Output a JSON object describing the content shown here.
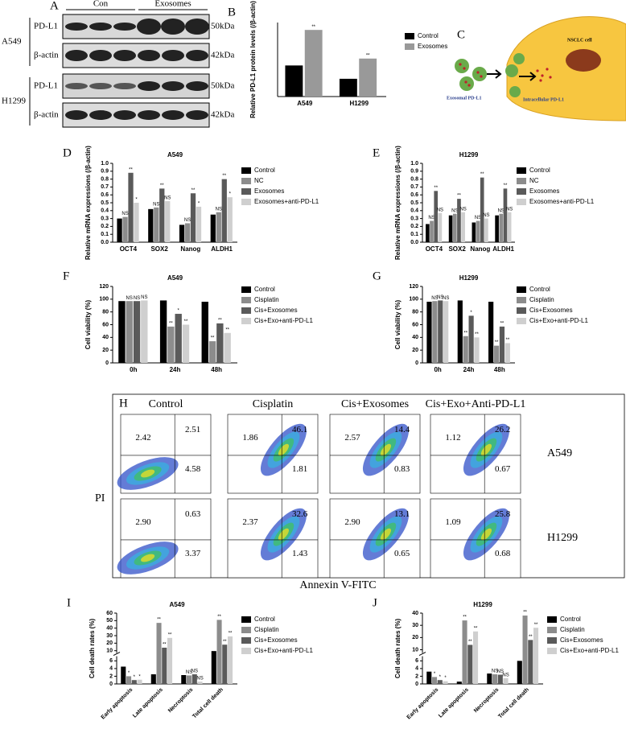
{
  "blot": {
    "letter": "A",
    "groups": [
      "Con",
      "Exosomes"
    ],
    "cells": [
      "A549",
      "H1299"
    ],
    "proteins": [
      "PD-L1",
      "β-actin",
      "PD-L1",
      "β-actin"
    ],
    "sizes": [
      "50kDa",
      "42kDa",
      "50kDa",
      "42kDa"
    ]
  },
  "diagram": {
    "letter": "C",
    "cell_label": "NSCLC cell",
    "exosome_label": "Exosomal PD-L1",
    "intracellular_label": "Intracellular PD-L1"
  },
  "flow": {
    "letter": "H",
    "columns": [
      "Control",
      "Cisplatin",
      "Cis+Exosomes",
      "Cis+Exo+Anti-PD-L1"
    ],
    "rows": [
      "A549",
      "H1299"
    ],
    "y_label": "PI",
    "x_label": "Annexin V-FITC",
    "quadrants": [
      [
        [
          "2.42",
          "2.51",
          "4.58"
        ],
        [
          "1.86",
          "46.1",
          "1.81"
        ],
        [
          "2.57",
          "14.4",
          "0.83"
        ],
        [
          "1.12",
          "26.2",
          "0.67"
        ]
      ],
      [
        [
          "2.90",
          "0.63",
          "3.37"
        ],
        [
          "2.37",
          "32.6",
          "1.43"
        ],
        [
          "2.90",
          "13.1",
          "0.65"
        ],
        [
          "1.09",
          "25.8",
          "0.68"
        ]
      ]
    ]
  },
  "chart_data": [
    {
      "type": "bar",
      "panel": "B",
      "y_label": "Relative PD-L1 protein levels (/β-actin)",
      "categories": [
        "A549",
        "H1299"
      ],
      "series": [
        {
          "name": "Control",
          "color": "#000000",
          "values": [
            0.63,
            0.36
          ]
        },
        {
          "name": "Exosomes",
          "color": "#999999",
          "values": [
            1.35,
            0.77
          ],
          "sig": [
            "**",
            "**"
          ]
        }
      ],
      "ylim": [
        0,
        1.5
      ],
      "yticks": []
    },
    {
      "type": "bar",
      "panel": "D",
      "title": "A549",
      "y_label": "Relative mRNA expressions (/β-actin)",
      "categories": [
        "OCT4",
        "SOX2",
        "Nanog",
        "ALDH1"
      ],
      "series": [
        {
          "name": "Control",
          "color": "#000000",
          "values": [
            0.3,
            0.42,
            0.22,
            0.35
          ]
        },
        {
          "name": "NC",
          "color": "#8c8c8c",
          "values": [
            0.32,
            0.44,
            0.24,
            0.38
          ],
          "sig": [
            "NS",
            "NS",
            "NS",
            "NS"
          ]
        },
        {
          "name": "Exosomes",
          "color": "#5a5a5a",
          "values": [
            0.88,
            0.68,
            0.62,
            0.8
          ],
          "sig": [
            "**",
            "**",
            "**",
            "**"
          ]
        },
        {
          "name": "Exosomes+anti-PD-L1",
          "color": "#cfcfcf",
          "values": [
            0.5,
            0.52,
            0.45,
            0.57
          ],
          "sig": [
            "*",
            "NS",
            "*",
            "*"
          ]
        }
      ],
      "ylim": [
        0,
        1.0
      ],
      "yticks": [
        {
          "value": 0,
          "label": "0.0"
        },
        0.1,
        0.2,
        0.3,
        0.4,
        0.5,
        0.6,
        0.7,
        0.8,
        0.9,
        {
          "value": 1,
          "label": "1.0"
        }
      ]
    },
    {
      "type": "bar",
      "panel": "E",
      "title": "H1299",
      "y_label": "Relative mRNA expressions (/β-actin)",
      "categories": [
        "OCT4",
        "SOX2",
        "Nanog",
        "ALDH1"
      ],
      "series": [
        {
          "name": "Control",
          "color": "#000000",
          "values": [
            0.23,
            0.34,
            0.25,
            0.34
          ]
        },
        {
          "name": "NC",
          "color": "#8c8c8c",
          "values": [
            0.27,
            0.36,
            0.27,
            0.36
          ],
          "sig": [
            "NS",
            "NS",
            "NS",
            "NS"
          ]
        },
        {
          "name": "Exosomes",
          "color": "#5a5a5a",
          "values": [
            0.65,
            0.55,
            0.82,
            0.68
          ],
          "sig": [
            "**",
            "**",
            "**",
            "**"
          ]
        },
        {
          "name": "Exosomes+anti-PD-L1",
          "color": "#cfcfcf",
          "values": [
            0.37,
            0.38,
            0.3,
            0.38
          ],
          "sig": [
            "NS",
            "NS",
            "NS",
            "NS"
          ]
        }
      ],
      "ylim": [
        0,
        1.0
      ],
      "yticks": [
        {
          "value": 0,
          "label": "0.0"
        },
        0.1,
        0.2,
        0.3,
        0.4,
        0.5,
        0.6,
        0.7,
        0.8,
        0.9,
        {
          "value": 1,
          "label": "1.0"
        }
      ]
    },
    {
      "type": "bar",
      "panel": "F",
      "title": "A549",
      "y_label": "Cell viability (%)",
      "categories": [
        "0h",
        "24h",
        "48h"
      ],
      "series": [
        {
          "name": "Control",
          "color": "#000000",
          "values": [
            97,
            98,
            96
          ]
        },
        {
          "name": "Cisplatin",
          "color": "#8c8c8c",
          "values": [
            97,
            57,
            34
          ],
          "sig": [
            "NS",
            "**",
            "**"
          ]
        },
        {
          "name": "Cis+Exosomes",
          "color": "#5a5a5a",
          "values": [
            97,
            77,
            62
          ],
          "sig": [
            "NS",
            "*",
            "**"
          ]
        },
        {
          "name": "Cis+Exo+anti-PD-L1",
          "color": "#cfcfcf",
          "values": [
            98,
            60,
            47
          ],
          "sig": [
            "NS",
            "**",
            "**"
          ]
        }
      ],
      "ylim": [
        0,
        120
      ],
      "yticks": [
        0,
        20,
        40,
        60,
        80,
        100,
        120
      ]
    },
    {
      "type": "bar",
      "panel": "G",
      "title": "H1299",
      "y_label": "Cell viability (%)",
      "categories": [
        "0h",
        "24h",
        "48h"
      ],
      "series": [
        {
          "name": "Control",
          "color": "#000000",
          "values": [
            96,
            98,
            96
          ]
        },
        {
          "name": "Cisplatin",
          "color": "#8c8c8c",
          "values": [
            97,
            42,
            27
          ],
          "sig": [
            "NS",
            "**",
            "**"
          ]
        },
        {
          "name": "Cis+Exosomes",
          "color": "#5a5a5a",
          "values": [
            98,
            74,
            57
          ],
          "sig": [
            "NS",
            "*",
            "**"
          ]
        },
        {
          "name": "Cis+Exo+anti-PD-L1",
          "color": "#cfcfcf",
          "values": [
            97,
            40,
            31
          ],
          "sig": [
            "NS",
            "**",
            "**"
          ]
        }
      ],
      "ylim": [
        0,
        120
      ],
      "yticks": [
        0,
        20,
        40,
        60,
        80,
        100,
        120
      ]
    },
    {
      "type": "bar",
      "panel": "I",
      "title": "A549",
      "y_label": "Cell death rates (%)",
      "categories": [
        "Early apoptosis",
        "Late apoptosis",
        "Necroptosis",
        "Total cell death"
      ],
      "series": [
        {
          "name": "Control",
          "color": "#000000",
          "values": [
            4.5,
            2.5,
            2.3,
            9.5
          ]
        },
        {
          "name": "Cisplatin",
          "color": "#8c8c8c",
          "values": [
            2.0,
            47,
            2.2,
            51
          ],
          "sig": [
            "*",
            "**",
            "NS",
            "**"
          ]
        },
        {
          "name": "Cis+Exosomes",
          "color": "#5a5a5a",
          "values": [
            1.0,
            14,
            2.5,
            18
          ],
          "sig": [
            "*",
            "**",
            "NS",
            "**"
          ]
        },
        {
          "name": "Cis+Exo+anti-PD-L1",
          "color": "#cfcfcf",
          "values": [
            1.1,
            27,
            0.6,
            29
          ],
          "sig": [
            "*",
            "**",
            "NS",
            "**"
          ]
        }
      ],
      "ylim": [
        0,
        60
      ],
      "ybreak": [
        7,
        8
      ],
      "yticks": [
        0,
        2,
        4,
        6,
        10,
        20,
        30,
        40,
        50,
        60
      ]
    },
    {
      "type": "bar",
      "panel": "J",
      "title": "H1299",
      "y_label": "Cell death rates (%)",
      "categories": [
        "Early apoptosis",
        "Late apoptosis",
        "Necroptosis",
        "Total cell death"
      ],
      "series": [
        {
          "name": "Control",
          "color": "#000000",
          "values": [
            3.2,
            0.6,
            2.7,
            6.0
          ]
        },
        {
          "name": "Cisplatin",
          "color": "#8c8c8c",
          "values": [
            1.8,
            34,
            2.5,
            38
          ],
          "sig": [
            "*",
            "**",
            "NS",
            "**"
          ]
        },
        {
          "name": "Cis+Exosomes",
          "color": "#5a5a5a",
          "values": [
            1.0,
            14,
            2.4,
            18
          ],
          "sig": [
            "*",
            "**",
            "NS",
            "**"
          ]
        },
        {
          "name": "Cis+Exo+anti-PD-L1",
          "color": "#cfcfcf",
          "values": [
            0.7,
            25,
            1.5,
            28
          ],
          "sig": [
            "*",
            "**",
            "NS",
            "**"
          ]
        }
      ],
      "ylim": [
        0,
        40
      ],
      "ybreak": [
        7,
        8
      ],
      "yticks": [
        0,
        2,
        4,
        6,
        10,
        20,
        30,
        40
      ]
    }
  ]
}
